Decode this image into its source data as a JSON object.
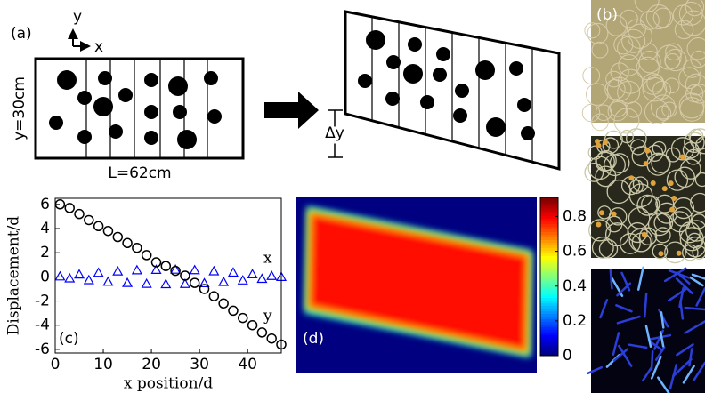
{
  "figure": {
    "panel_a": {
      "label": "(a)",
      "axis_y": "y",
      "axis_x": "x",
      "height": "y=30cm",
      "length": "L=62cm",
      "shift": "Δy"
    },
    "panel_b": {
      "label": "(b)"
    }
  },
  "chart_data": [
    {
      "type": "scatter",
      "label": "(c)",
      "xlabel": "x position/d",
      "ylabel": "Displacement/d",
      "xlim": [
        0,
        47
      ],
      "ylim": [
        -6.3,
        6.5
      ],
      "xticks": [
        0,
        10,
        20,
        30,
        40
      ],
      "yticks": [
        -6,
        -4,
        -2,
        0,
        2,
        4,
        6
      ],
      "x": [
        1,
        3,
        5,
        7,
        9,
        11,
        13,
        15,
        17,
        19,
        21,
        23,
        25,
        27,
        29,
        31,
        33,
        35,
        37,
        39,
        41,
        43,
        45,
        47
      ],
      "series": [
        {
          "name": "x",
          "color": "#0000ff",
          "marker": "triangle",
          "values": [
            0.04,
            -0.12,
            0.2,
            -0.27,
            0.34,
            -0.4,
            0.46,
            -0.5,
            0.55,
            -0.57,
            0.59,
            -0.6,
            0.6,
            -0.58,
            0.56,
            -0.52,
            0.47,
            -0.42,
            0.36,
            -0.29,
            0.22,
            -0.16,
            0.08,
            0
          ]
        },
        {
          "name": "y",
          "color": "#000000",
          "marker": "circle",
          "values": [
            6.0,
            5.7,
            5.2,
            4.7,
            4.2,
            3.8,
            3.3,
            2.8,
            2.4,
            1.8,
            1.2,
            0.9,
            0.5,
            0.1,
            -0.5,
            -1.0,
            -1.6,
            -2.2,
            -2.8,
            -3.4,
            -4.0,
            -4.6,
            -5.1,
            -5.6
          ]
        }
      ]
    },
    {
      "type": "heatmap",
      "label": "(d)",
      "colormap": "jet",
      "ylim": [
        0,
        0.91
      ],
      "yticks": [
        0,
        0.2,
        0.4,
        0.6,
        0.8
      ]
    }
  ]
}
